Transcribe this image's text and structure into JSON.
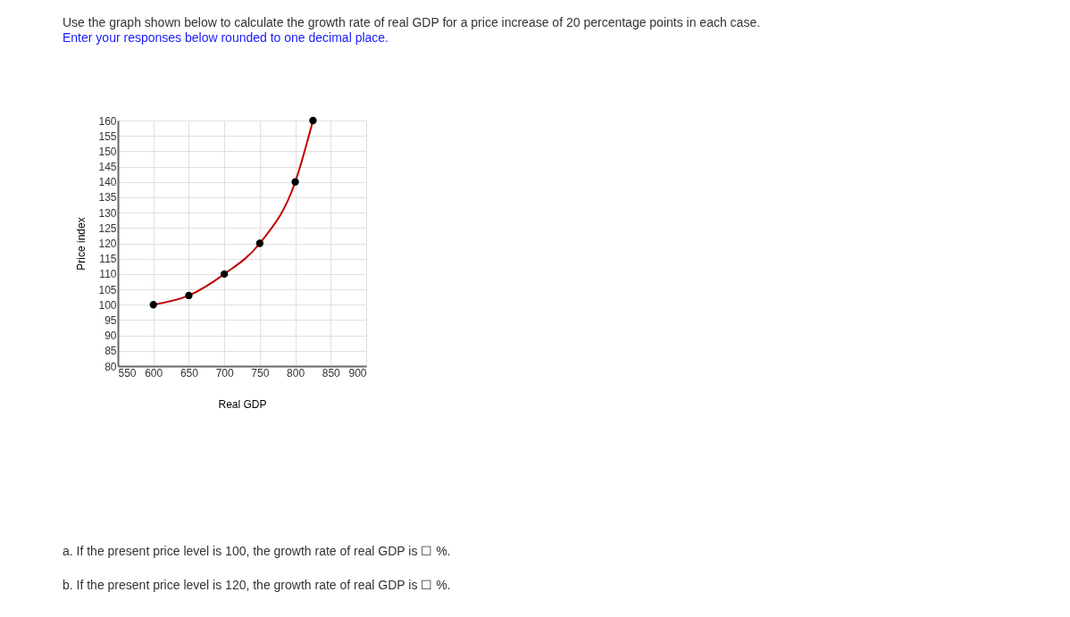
{
  "chart_data": {
    "type": "line",
    "title": "Use the graph shown below to calculate the growth rate of real GDP for a price increase of 20 percentage points in each case.",
    "subtitle": "Enter your responses below rounded to one decimal place.",
    "xlabel": "Real GDP",
    "ylabel": "Price index",
    "x": [
      600,
      650,
      700,
      750,
      800,
      825
    ],
    "series": [
      {
        "color": "#c00000",
        "values": [
          100,
          103,
          110,
          120,
          140,
          160
        ]
      }
    ],
    "xlim": [
      550,
      900
    ],
    "xticks": [
      550,
      600,
      650,
      700,
      750,
      800,
      850,
      900
    ],
    "ylim": [
      80,
      160
    ],
    "yticks": [
      80,
      85,
      90,
      95,
      100,
      105,
      110,
      115,
      120,
      125,
      130,
      135,
      140,
      145,
      150,
      155,
      160
    ],
    "grid": true,
    "marker": "circle",
    "line_style": "solid",
    "legend": false,
    "annotations": [
      "a. If the present price level is 100, the growth rate of real GDP is ☐ %.",
      "b. If the present price level is 120, the growth rate of real GDP is ☐ %."
    ]
  }
}
